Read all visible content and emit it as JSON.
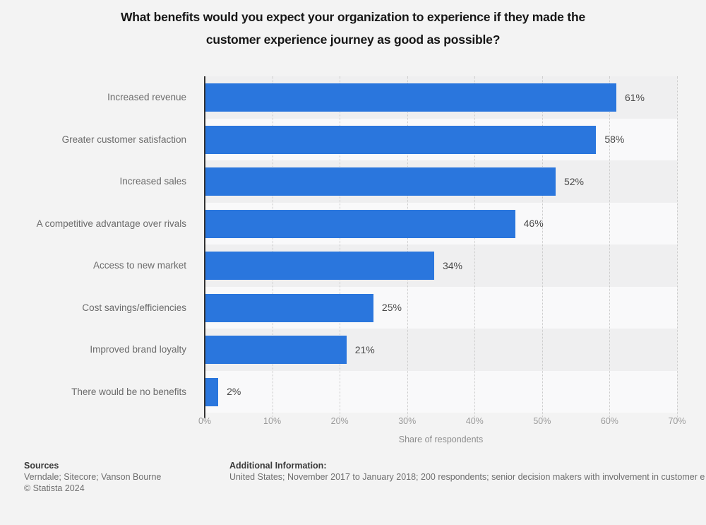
{
  "title": {
    "line1": "What benefits would you expect your organization to experience if they made the",
    "line2": "customer experience journey as good as possible?"
  },
  "chart_data": {
    "type": "bar",
    "orientation": "horizontal",
    "title": "What benefits would you expect your organization to experience if they made the customer experience journey as good as possible?",
    "categories": [
      "Increased revenue",
      "Greater customer satisfaction",
      "Increased sales",
      "A competitive advantage over rivals",
      "Access to new market",
      "Cost savings/efficiencies",
      "Improved brand loyalty",
      "There would be no benefits"
    ],
    "values": [
      61,
      58,
      52,
      46,
      34,
      25,
      21,
      2
    ],
    "value_labels": [
      "61%",
      "58%",
      "52%",
      "46%",
      "34%",
      "25%",
      "21%",
      "2%"
    ],
    "xlabel": "Share of respondents",
    "ylabel": "",
    "xlim": [
      0,
      70
    ],
    "x_ticks": [
      "0%",
      "10%",
      "20%",
      "30%",
      "40%",
      "50%",
      "60%",
      "70%"
    ],
    "grid": "vertical dotted gridlines at every 10%",
    "legend": "none"
  },
  "colors": {
    "bar": "#2a76dd",
    "canvas": "#f3f3f3",
    "band_odd": "#efeff0",
    "band_even": "#f9f9fa",
    "axis_line": "#333333",
    "gridline": "#c9c9c9"
  },
  "footer": {
    "sources_heading": "Sources",
    "sources_line": "Verndale; Sitecore; Vanson Bourne",
    "copyright": "© Statista 2024",
    "additional_heading": "Additional Information:",
    "additional_text": "United States; November 2017 to January 2018; 200 respondents; senior decision makers with involvement in customer e"
  }
}
